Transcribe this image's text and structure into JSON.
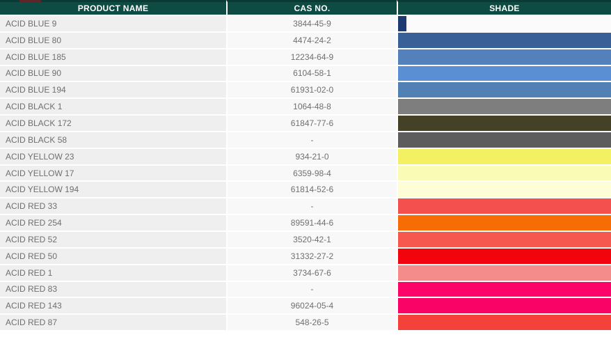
{
  "table": {
    "columns": [
      {
        "label": "PRODUCT NAME"
      },
      {
        "label": "CAS NO."
      },
      {
        "label": "SHADE"
      }
    ],
    "rows": [
      {
        "product": "ACID BLUE 9",
        "cas": "3844-45-9",
        "shade": "#1D3B72",
        "narrow": true
      },
      {
        "product": "ACID BLUE 80",
        "cas": "4474-24-2",
        "shade": "#3A6098",
        "narrow": false
      },
      {
        "product": "ACID BLUE 185",
        "cas": "12234-64-9",
        "shade": "#5480BB",
        "narrow": false
      },
      {
        "product": "ACID BLUE 90",
        "cas": "6104-58-1",
        "shade": "#5A8FD3",
        "narrow": false
      },
      {
        "product": "ACID BLUE 194",
        "cas": "61931-02-0",
        "shade": "#5080B4",
        "narrow": false
      },
      {
        "product": "ACID BLACK 1",
        "cas": "1064-48-8",
        "shade": "#7E7E7E",
        "narrow": false
      },
      {
        "product": "ACID BLACK 172",
        "cas": "61847-77-6",
        "shade": "#454127",
        "narrow": false
      },
      {
        "product": "ACID BLACK 58",
        "cas": "-",
        "shade": "#5D5D5D",
        "narrow": false
      },
      {
        "product": "ACID YELLOW 23",
        "cas": "934-21-0",
        "shade": "#F4F064",
        "narrow": false
      },
      {
        "product": "ACID YELLOW 17",
        "cas": "6359-98-4",
        "shade": "#FAFBB5",
        "narrow": false
      },
      {
        "product": "ACID YELLOW 194",
        "cas": "61814-52-6",
        "shade": "#FDFDD6",
        "narrow": false
      },
      {
        "product": "ACID RED 33",
        "cas": "-",
        "shade": "#F4504E",
        "narrow": false
      },
      {
        "product": "ACID RED 254",
        "cas": "89591-44-6",
        "shade": "#F76C04",
        "narrow": false
      },
      {
        "product": "ACID RED 52",
        "cas": "3520-42-1",
        "shade": "#F65850",
        "narrow": false
      },
      {
        "product": "ACID RED 50",
        "cas": "31332-27-2",
        "shade": "#F2040C",
        "narrow": false
      },
      {
        "product": "ACID RED 1",
        "cas": "3734-67-6",
        "shade": "#F58C8C",
        "narrow": false
      },
      {
        "product": "ACID RED 83",
        "cas": "-",
        "shade": "#FE0468",
        "narrow": false
      },
      {
        "product": "ACID RED 143",
        "cas": "96024-05-4",
        "shade": "#F90367",
        "narrow": false
      },
      {
        "product": "ACID RED 87",
        "cas": "548-26-5",
        "shade": "#F4413A",
        "narrow": false
      }
    ]
  },
  "colors": {
    "header_bg": "#0D4B43",
    "header_text": "#FFFFFF",
    "name_cell_bg": "#EFEFEF",
    "cas_cell_bg": "#F8F8F8",
    "row_text": "#6F6F6F",
    "separator": "#FFFFFF",
    "top_sliver": "#5C2628"
  }
}
